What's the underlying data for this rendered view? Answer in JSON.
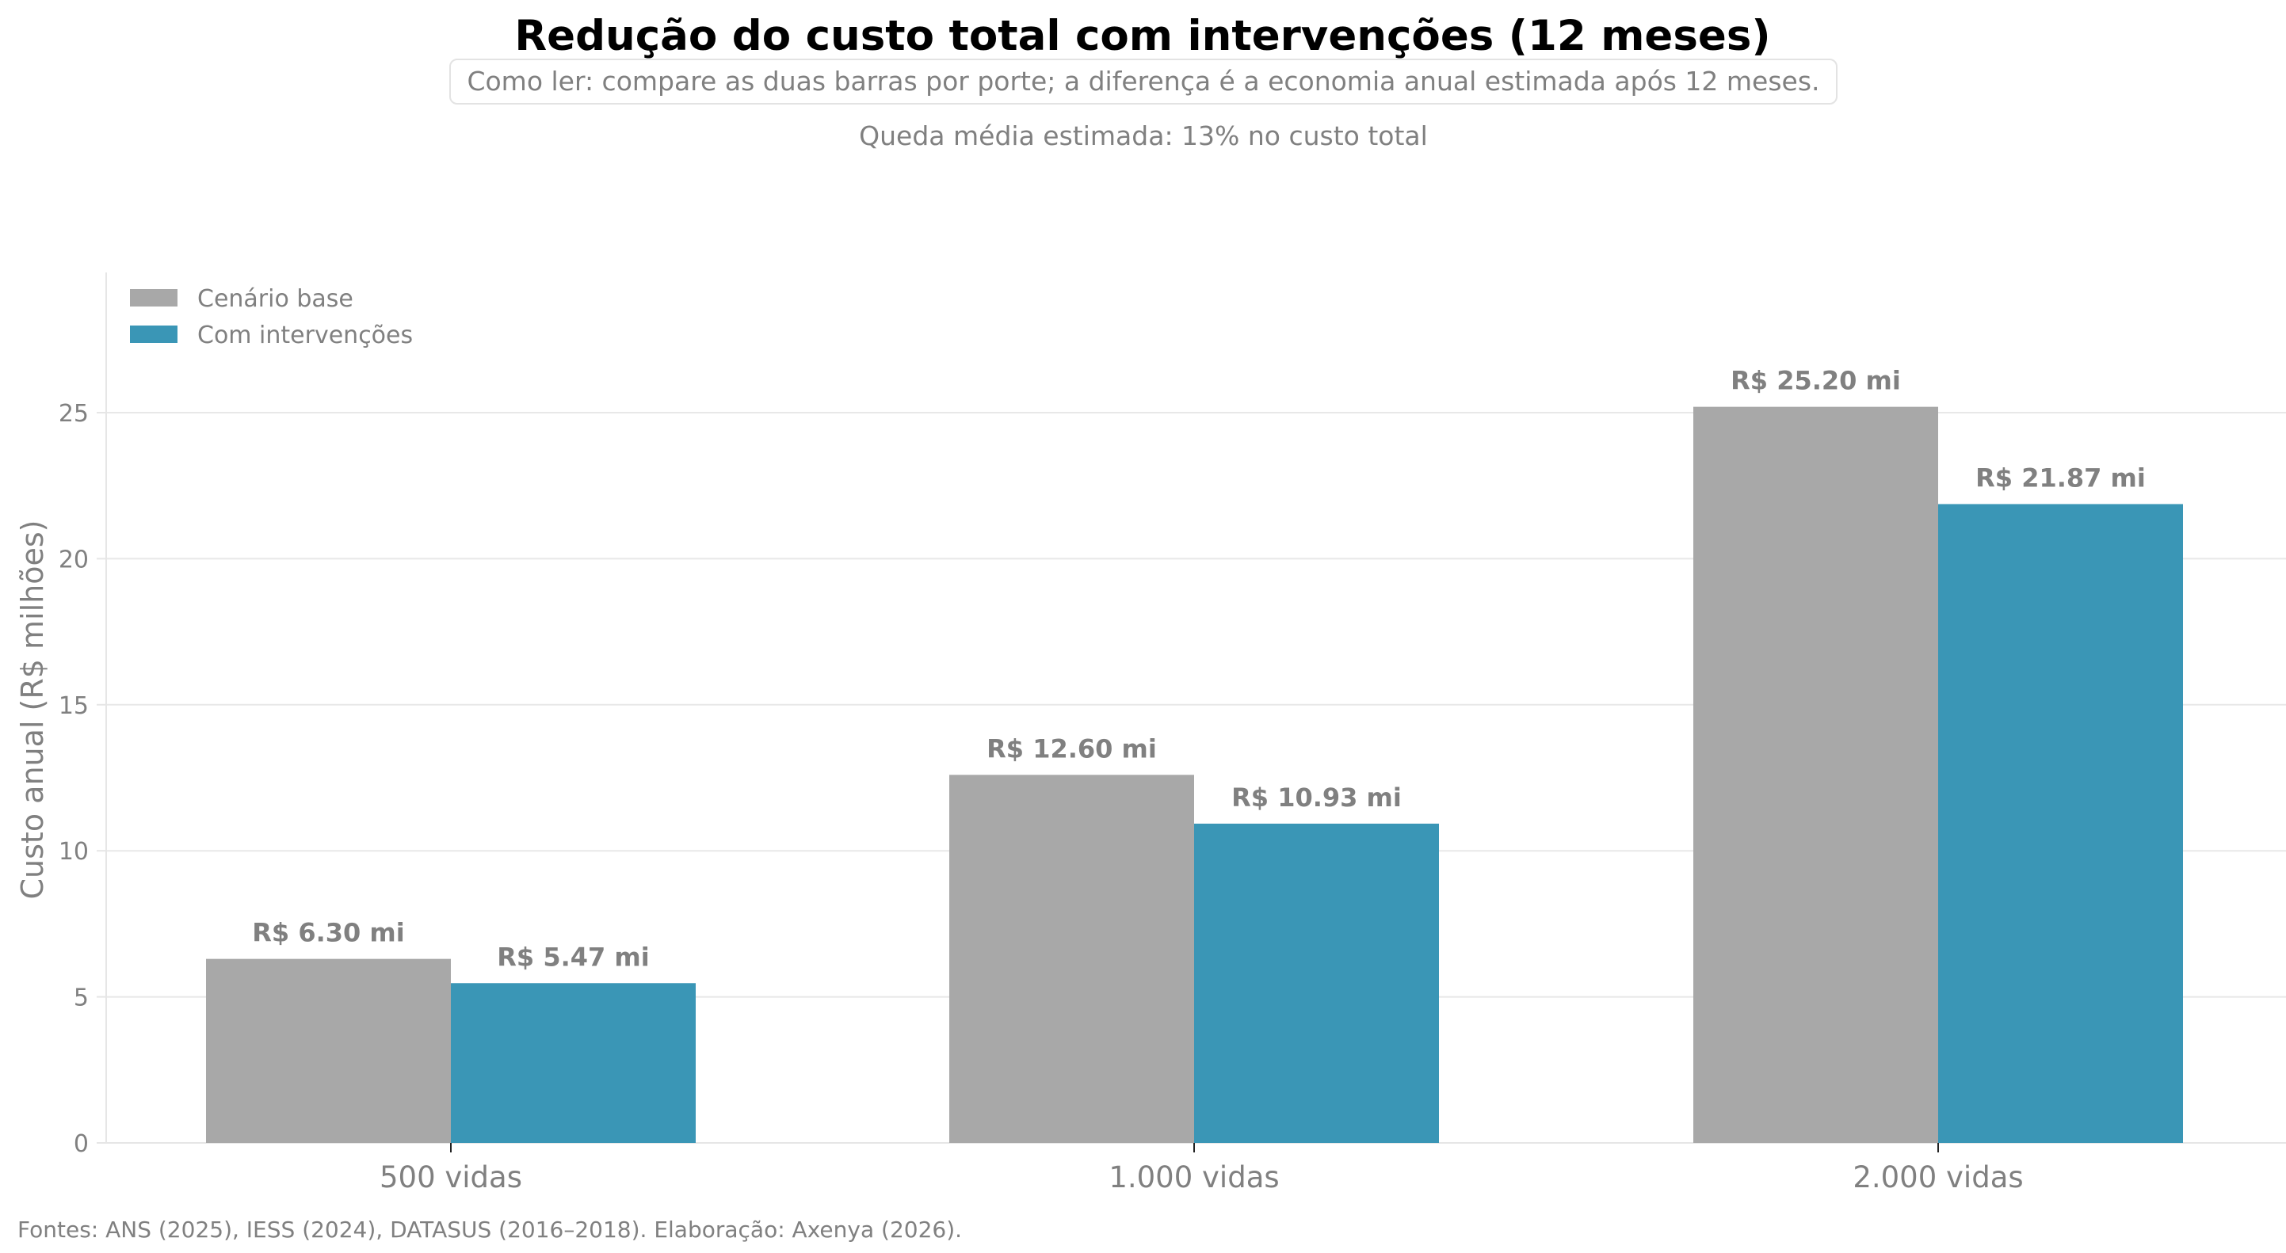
{
  "chart_data": {
    "type": "bar",
    "title": "Redução do custo total com intervenções (12 meses)",
    "subtitle": "Como ler: compare as duas barras por porte; a diferença é a economia anual estimada após 12 meses.",
    "annotation": "Queda média estimada: 13% no custo total",
    "categories": [
      "500 vidas",
      "1.000 vidas",
      "2.000 vidas"
    ],
    "series": [
      {
        "name": "Cenário base",
        "color": "#a8a8a8",
        "values": [
          6.3,
          12.6,
          25.2
        ],
        "labels": [
          "R$ 6.30 mi",
          "R$ 12.60 mi",
          "R$ 25.20 mi"
        ]
      },
      {
        "name": "Com intervenções",
        "color": "#3a96b6",
        "values": [
          5.47,
          10.93,
          21.87
        ],
        "labels": [
          "R$ 5.47 mi",
          "R$ 10.93 mi",
          "R$ 21.87 mi"
        ]
      }
    ],
    "xlabel": "",
    "ylabel": "Custo anual (R$ milhões)",
    "ylim": [
      0,
      29.8
    ],
    "yticks": [
      0,
      5,
      10,
      15,
      20,
      25
    ],
    "grid": true,
    "legend_position": "top-left",
    "footer": "Fontes: ANS (2025), IESS (2024), DATASUS (2016–2018). Elaboração: Axenya (2026)."
  }
}
